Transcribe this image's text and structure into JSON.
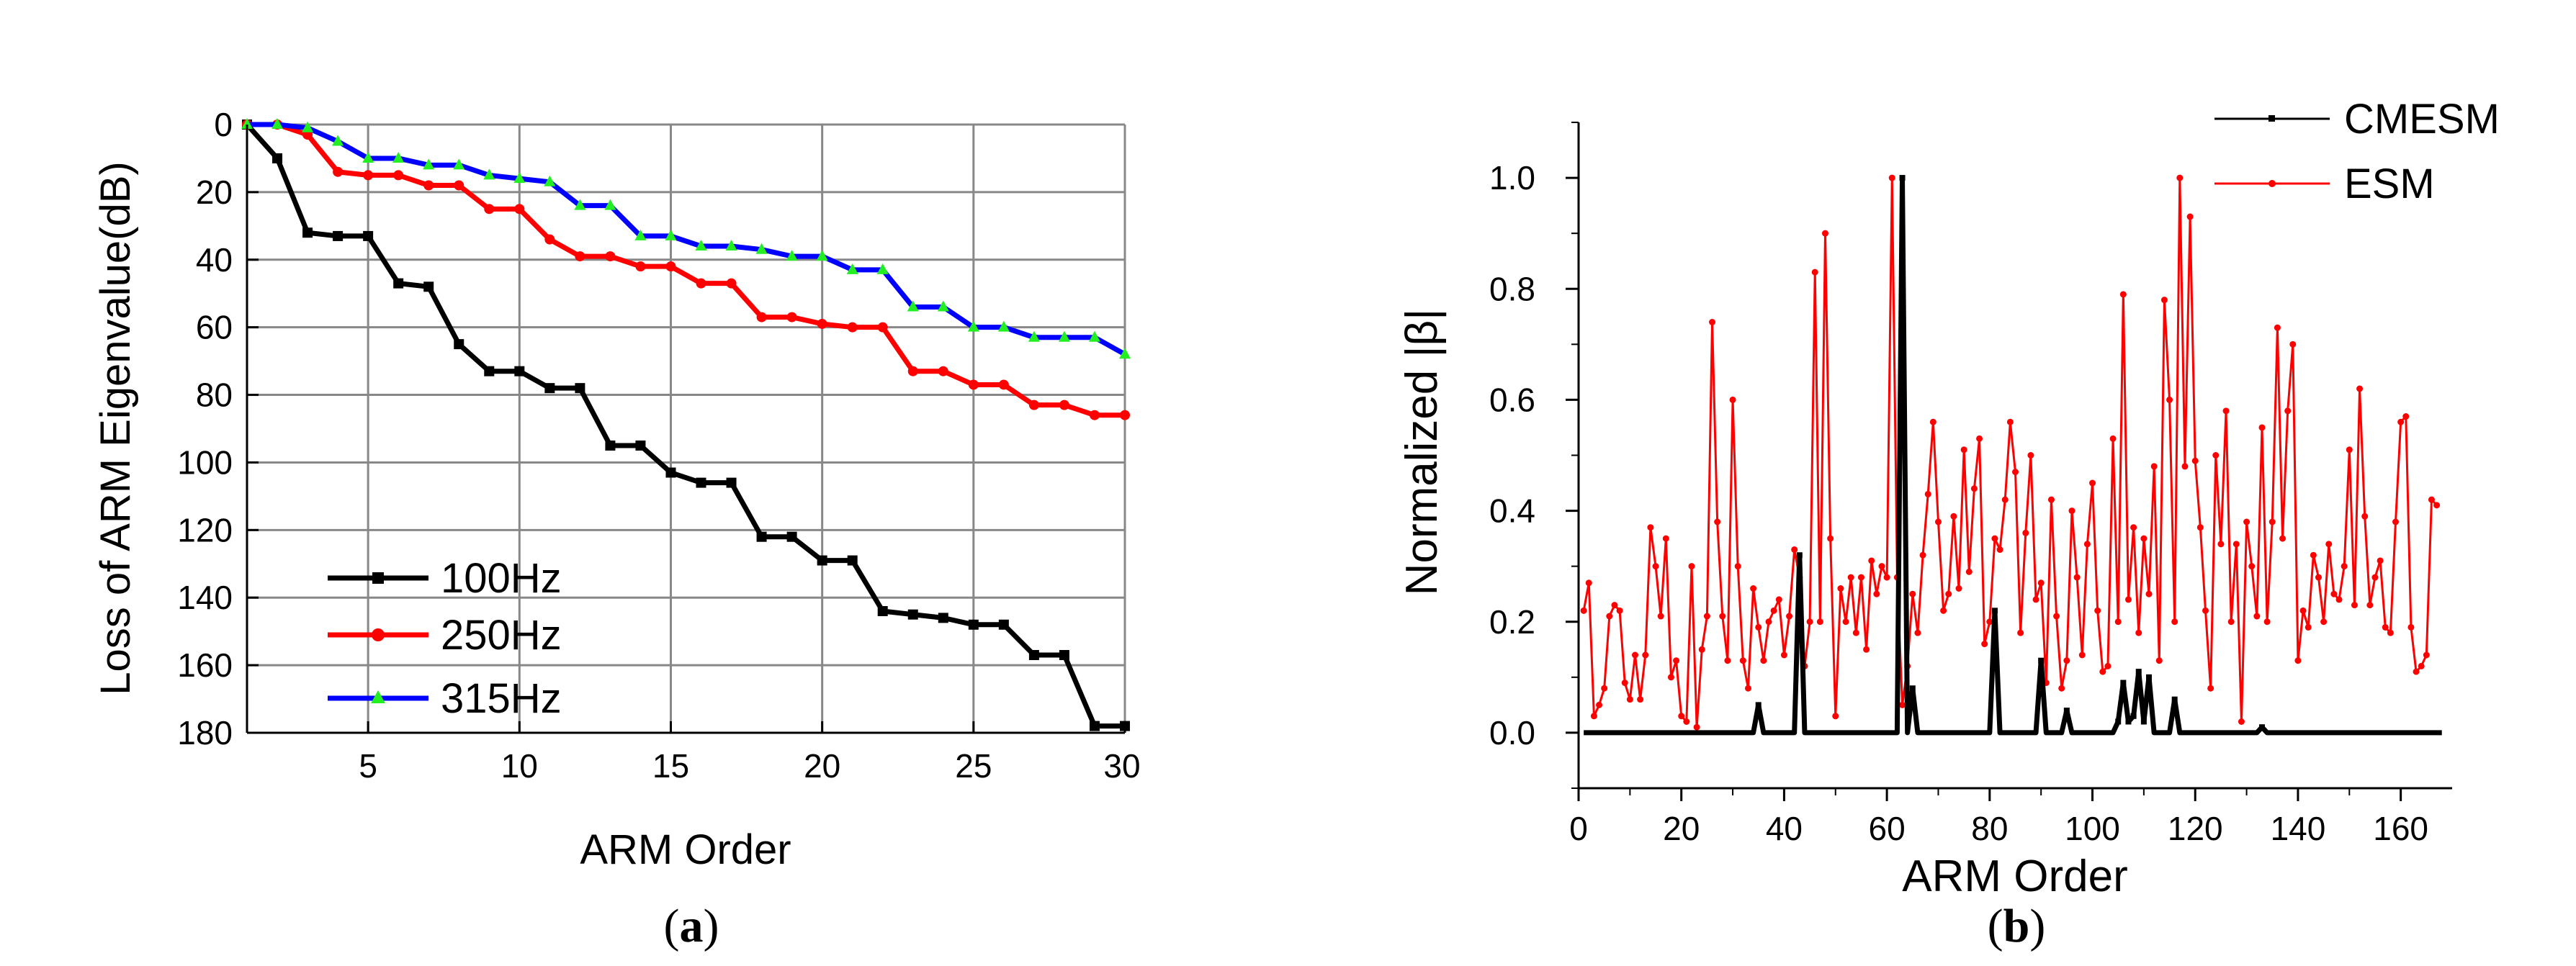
{
  "charts": [
    {
      "panel_label": "(a)",
      "panel_letter": "a",
      "chart_data": {
        "type": "line",
        "title": "",
        "xlabel": "ARM Order",
        "ylabel": "Loss of ARM Eigenvalue(dB)",
        "xlim": [
          1,
          30
        ],
        "ylim": [
          0,
          180
        ],
        "y_inverted": true,
        "grid": true,
        "legend_position": "bottom-left",
        "x_ticks": [
          5,
          10,
          15,
          20,
          25,
          30
        ],
        "y_ticks": [
          0,
          20,
          40,
          60,
          80,
          100,
          120,
          140,
          160,
          180
        ],
        "x": [
          1,
          2,
          3,
          4,
          5,
          6,
          7,
          8,
          9,
          10,
          11,
          12,
          13,
          14,
          15,
          16,
          17,
          18,
          19,
          20,
          21,
          22,
          23,
          24,
          25,
          26,
          27,
          28,
          29,
          30
        ],
        "series": [
          {
            "name": "100Hz",
            "color": "#000000",
            "marker": "square",
            "values": [
              0,
              10,
              32,
              33,
              33,
              47,
              48,
              65,
              73,
              73,
              78,
              78,
              95,
              95,
              103,
              106,
              106,
              122,
              122,
              129,
              129,
              144,
              145,
              146,
              148,
              148,
              157,
              157,
              178,
              178
            ]
          },
          {
            "name": "250Hz",
            "color": "#ff0000",
            "marker": "circle",
            "values": [
              0,
              0,
              3,
              14,
              15,
              15,
              18,
              18,
              25,
              25,
              34,
              39,
              39,
              42,
              42,
              47,
              47,
              57,
              57,
              59,
              60,
              60,
              73,
              73,
              77,
              77,
              83,
              83,
              86,
              86
            ]
          },
          {
            "name": "315Hz",
            "color": "#0000ff",
            "marker": "triangle",
            "marker_color": "#22ee22",
            "values": [
              0,
              0,
              1,
              5,
              10,
              10,
              12,
              12,
              15,
              16,
              17,
              24,
              24,
              33,
              33,
              36,
              36,
              37,
              39,
              39,
              43,
              43,
              54,
              54,
              60,
              60,
              63,
              63,
              63,
              68
            ]
          }
        ]
      }
    },
    {
      "panel_label": "(b)",
      "panel_letter": "b",
      "chart_data": {
        "type": "line",
        "title": "",
        "xlabel": "ARM Order",
        "ylabel": "Normalized |β|",
        "xlim": [
          0,
          170
        ],
        "ylim": [
          -0.1,
          1.1
        ],
        "grid": false,
        "legend_position": "top-right",
        "x_ticks": [
          0,
          20,
          40,
          60,
          80,
          100,
          120,
          140,
          160
        ],
        "y_ticks": [
          "0.0",
          "0.2",
          "0.4",
          "0.6",
          "0.8",
          "1.0"
        ],
        "series": [
          {
            "name": "CMESM",
            "color": "#000000",
            "points": [
              [
                1,
                0
              ],
              [
                34,
                0
              ],
              [
                35,
                0.05
              ],
              [
                36,
                0
              ],
              [
                42,
                0
              ],
              [
                43,
                0.32
              ],
              [
                44,
                0
              ],
              [
                62,
                0
              ],
              [
                63,
                1.0
              ],
              [
                64,
                0
              ],
              [
                65,
                0.08
              ],
              [
                66,
                0
              ],
              [
                80,
                0
              ],
              [
                81,
                0.22
              ],
              [
                82,
                0
              ],
              [
                89,
                0
              ],
              [
                90,
                0.13
              ],
              [
                91,
                0
              ],
              [
                94,
                0
              ],
              [
                95,
                0.04
              ],
              [
                96,
                0
              ],
              [
                104,
                0
              ],
              [
                105,
                0.02
              ],
              [
                106,
                0.09
              ],
              [
                107,
                0.02
              ],
              [
                108,
                0.03
              ],
              [
                109,
                0.11
              ],
              [
                110,
                0.02
              ],
              [
                111,
                0.1
              ],
              [
                112,
                0
              ],
              [
                115,
                0
              ],
              [
                116,
                0.06
              ],
              [
                117,
                0
              ],
              [
                132,
                0
              ],
              [
                133,
                0.01
              ],
              [
                134,
                0
              ],
              [
                168,
                0
              ]
            ]
          },
          {
            "name": "ESM",
            "color": "#ff0000",
            "values": [
              0.22,
              0.27,
              0.03,
              0.05,
              0.08,
              0.21,
              0.23,
              0.22,
              0.09,
              0.06,
              0.14,
              0.06,
              0.14,
              0.37,
              0.3,
              0.21,
              0.35,
              0.1,
              0.13,
              0.03,
              0.02,
              0.3,
              0.01,
              0.15,
              0.21,
              0.74,
              0.38,
              0.21,
              0.13,
              0.6,
              0.3,
              0.13,
              0.08,
              0.26,
              0.19,
              0.13,
              0.2,
              0.22,
              0.24,
              0.14,
              0.21,
              0.33,
              0.28,
              0.12,
              0.2,
              0.83,
              0.2,
              0.9,
              0.35,
              0.03,
              0.26,
              0.2,
              0.28,
              0.18,
              0.28,
              0.15,
              0.31,
              0.25,
              0.3,
              0.28,
              1.0,
              0.28,
              0.05,
              0.12,
              0.25,
              0.18,
              0.32,
              0.43,
              0.56,
              0.38,
              0.22,
              0.25,
              0.39,
              0.26,
              0.51,
              0.29,
              0.44,
              0.53,
              0.16,
              0.2,
              0.35,
              0.33,
              0.42,
              0.56,
              0.47,
              0.18,
              0.36,
              0.5,
              0.24,
              0.27,
              0.09,
              0.42,
              0.21,
              0.08,
              0.13,
              0.4,
              0.28,
              0.14,
              0.34,
              0.45,
              0.22,
              0.11,
              0.12,
              0.53,
              0.2,
              0.79,
              0.24,
              0.37,
              0.18,
              0.35,
              0.25,
              0.48,
              0.13,
              0.78,
              0.6,
              0.2,
              1.0,
              0.48,
              0.93,
              0.49,
              0.37,
              0.22,
              0.08,
              0.5,
              0.34,
              0.58,
              0.2,
              0.34,
              0.02,
              0.38,
              0.3,
              0.21,
              0.55,
              0.2,
              0.38,
              0.73,
              0.35,
              0.58,
              0.7,
              0.13,
              0.22,
              0.19,
              0.32,
              0.28,
              0.2,
              0.34,
              0.25,
              0.24,
              0.3,
              0.51,
              0.23,
              0.62,
              0.39,
              0.23,
              0.28,
              0.31,
              0.19,
              0.18,
              0.38,
              0.56,
              0.57,
              0.19,
              0.11,
              0.12,
              0.14,
              0.42,
              0.41
            ]
          }
        ]
      }
    }
  ]
}
